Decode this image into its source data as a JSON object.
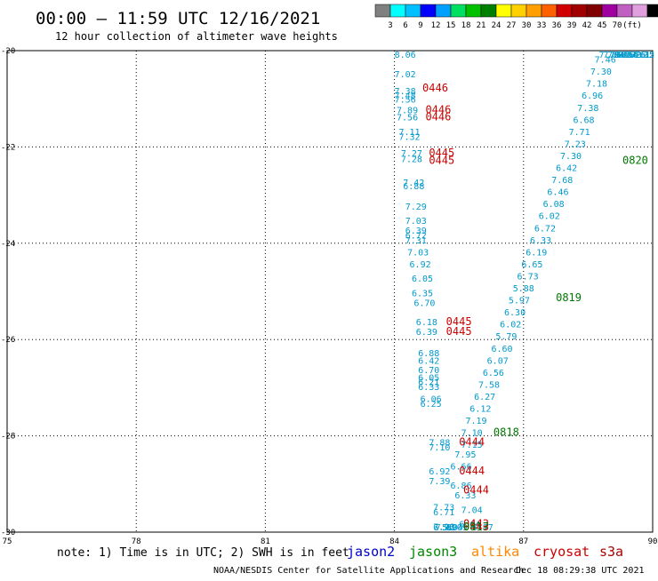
{
  "header": {
    "title": "00:00 – 11:59 UTC 12/16/2021",
    "subtitle": "12 hour collection of altimeter wave heights"
  },
  "color_scale": {
    "colors": [
      "#808080",
      "#00ffff",
      "#00c0ff",
      "#0000ff",
      "#00a0ff",
      "#00e060",
      "#00c000",
      "#008000",
      "#ffff00",
      "#ffd000",
      "#ffa000",
      "#ff6000",
      "#d00000",
      "#a00000",
      "#800000",
      "#a000a0",
      "#c060c0",
      "#e0a0e0",
      "#000000"
    ],
    "labels": [
      "3",
      "6",
      "9",
      "12",
      "15",
      "18",
      "21",
      "24",
      "27",
      "30",
      "33",
      "36",
      "39",
      "42",
      "45",
      "70",
      "(ft)"
    ]
  },
  "footer": {
    "note": "note: 1) Time is in UTC; 2) SWH is in feet",
    "credit": "NOAA/NESDIS Center for Satellite Applications and Research",
    "timestamp": "Dec 18 08:29:38 UTC 2021"
  },
  "legend": [
    {
      "name": "jason2",
      "color": "#0000cc"
    },
    {
      "name": "jason3",
      "color": "#008800"
    },
    {
      "name": "altika",
      "color": "#ff8800"
    },
    {
      "name": "cryosat",
      "color": "#cc0000"
    },
    {
      "name": "s3a",
      "color": "#aa0000"
    }
  ],
  "chart_data": {
    "type": "scatter",
    "xlim": [
      75,
      90
    ],
    "ylim": [
      -30,
      -20
    ],
    "x_ticks": [
      "75",
      "78",
      "81",
      "84",
      "87",
      "90"
    ],
    "y_ticks": [
      "-20",
      "-22",
      "-24",
      "-26",
      "-28",
      "-30"
    ],
    "grid": true,
    "track_color": "#0099cc",
    "time_color": "#cc0000",
    "time2_color": "#007700",
    "wave_labels": [
      {
        "x": 84.0,
        "y": -20.05,
        "v": "8.06"
      },
      {
        "x": 84.0,
        "y": -20.55,
        "v": "7.02"
      },
      {
        "x": 84.0,
        "y": -20.9,
        "v": "7.38"
      },
      {
        "x": 84.0,
        "y": -21.0,
        "v": "7.48"
      },
      {
        "x": 84.0,
        "y": -21.08,
        "v": "7.56"
      },
      {
        "x": 84.05,
        "y": -21.3,
        "v": "7.89"
      },
      {
        "x": 84.05,
        "y": -21.45,
        "v": "7.56"
      },
      {
        "x": 84.1,
        "y": -21.75,
        "v": "7.11"
      },
      {
        "x": 84.1,
        "y": -21.85,
        "v": "7.32"
      },
      {
        "x": 84.15,
        "y": -22.2,
        "v": "7.27"
      },
      {
        "x": 84.15,
        "y": -22.32,
        "v": "7.28"
      },
      {
        "x": 84.2,
        "y": -22.8,
        "v": "7.42"
      },
      {
        "x": 84.2,
        "y": -22.88,
        "v": "6.88"
      },
      {
        "x": 84.25,
        "y": -23.3,
        "v": "7.29"
      },
      {
        "x": 84.25,
        "y": -23.6,
        "v": "7.03"
      },
      {
        "x": 84.25,
        "y": -23.8,
        "v": "6.39"
      },
      {
        "x": 84.25,
        "y": -23.9,
        "v": "6.72"
      },
      {
        "x": 84.25,
        "y": -24.0,
        "v": "7.31"
      },
      {
        "x": 84.3,
        "y": -24.25,
        "v": "7.03"
      },
      {
        "x": 84.35,
        "y": -24.5,
        "v": "6.92"
      },
      {
        "x": 84.4,
        "y": -24.8,
        "v": "6.05"
      },
      {
        "x": 84.4,
        "y": -25.1,
        "v": "6.35"
      },
      {
        "x": 84.45,
        "y": -25.3,
        "v": "6.70"
      },
      {
        "x": 84.5,
        "y": -25.7,
        "v": "6.18"
      },
      {
        "x": 84.5,
        "y": -25.9,
        "v": "6.39"
      },
      {
        "x": 84.55,
        "y": -26.35,
        "v": "6.88"
      },
      {
        "x": 84.55,
        "y": -26.5,
        "v": "6.42"
      },
      {
        "x": 84.55,
        "y": -26.7,
        "v": "6.70"
      },
      {
        "x": 84.55,
        "y": -26.85,
        "v": "6.05"
      },
      {
        "x": 84.55,
        "y": -26.95,
        "v": "6.21"
      },
      {
        "x": 84.55,
        "y": -27.05,
        "v": "6.33"
      },
      {
        "x": 84.6,
        "y": -27.3,
        "v": "6.06"
      },
      {
        "x": 84.6,
        "y": -27.4,
        "v": "6.25"
      },
      {
        "x": 84.8,
        "y": -28.2,
        "v": "7.88"
      },
      {
        "x": 84.8,
        "y": -28.3,
        "v": "7.10"
      },
      {
        "x": 84.8,
        "y": -28.8,
        "v": "6.92"
      },
      {
        "x": 84.8,
        "y": -29.0,
        "v": "7.39"
      },
      {
        "x": 84.9,
        "y": -29.55,
        "v": "7.73"
      },
      {
        "x": 84.9,
        "y": -29.65,
        "v": "6.71"
      },
      {
        "x": 85.55,
        "y": -29.6,
        "v": "7.04"
      },
      {
        "x": 85.5,
        "y": -29.9,
        "v": "6.64"
      },
      {
        "x": 84.9,
        "y": -29.95,
        "v": "7.96"
      },
      {
        "x": 84.95,
        "y": -30.05,
        "v": "7.19"
      },
      {
        "x": 85.1,
        "y": -30.15,
        "v": "5.04"
      },
      {
        "x": 84.9,
        "y": -30.3,
        "v": "6.72"
      },
      {
        "x": 85.2,
        "y": -30.35,
        "v": "6.09"
      },
      {
        "x": 85.8,
        "y": -30.3,
        "v": "6.87"
      },
      {
        "x": 85.55,
        "y": -28.25,
        "v": "7.15"
      },
      {
        "x": 85.4,
        "y": -28.45,
        "v": "7.95"
      },
      {
        "x": 85.3,
        "y": -28.7,
        "v": "6.66"
      },
      {
        "x": 85.3,
        "y": -29.1,
        "v": "6.86"
      },
      {
        "x": 85.4,
        "y": -29.3,
        "v": "6.33"
      },
      {
        "x": 85.55,
        "y": -28.0,
        "v": "7.10"
      },
      {
        "x": 85.65,
        "y": -27.75,
        "v": "7.19"
      },
      {
        "x": 85.75,
        "y": -27.5,
        "v": "6.12"
      },
      {
        "x": 85.85,
        "y": -27.25,
        "v": "6.27"
      },
      {
        "x": 85.95,
        "y": -27.0,
        "v": "7.58"
      },
      {
        "x": 86.05,
        "y": -26.75,
        "v": "6.56"
      },
      {
        "x": 86.15,
        "y": -26.5,
        "v": "6.07"
      },
      {
        "x": 86.25,
        "y": -26.25,
        "v": "6.60"
      },
      {
        "x": 86.35,
        "y": -26.0,
        "v": "5.79"
      },
      {
        "x": 86.45,
        "y": -25.75,
        "v": "6.02"
      },
      {
        "x": 86.55,
        "y": -25.5,
        "v": "6.30"
      },
      {
        "x": 86.65,
        "y": -25.25,
        "v": "5.97"
      },
      {
        "x": 86.75,
        "y": -25.0,
        "v": "5.88"
      },
      {
        "x": 86.85,
        "y": -24.75,
        "v": "6.73"
      },
      {
        "x": 86.95,
        "y": -24.5,
        "v": "6.65"
      },
      {
        "x": 87.05,
        "y": -24.25,
        "v": "6.19"
      },
      {
        "x": 87.15,
        "y": -24.0,
        "v": "6.33"
      },
      {
        "x": 87.25,
        "y": -23.75,
        "v": "6.72"
      },
      {
        "x": 87.35,
        "y": -23.5,
        "v": "6.02"
      },
      {
        "x": 87.45,
        "y": -23.25,
        "v": "6.08"
      },
      {
        "x": 87.55,
        "y": -23.0,
        "v": "6.46"
      },
      {
        "x": 87.65,
        "y": -22.75,
        "v": "7.68"
      },
      {
        "x": 87.75,
        "y": -22.5,
        "v": "6.42"
      },
      {
        "x": 87.85,
        "y": -22.25,
        "v": "7.30"
      },
      {
        "x": 87.95,
        "y": -22.0,
        "v": "7.23"
      },
      {
        "x": 88.05,
        "y": -21.75,
        "v": "7.71"
      },
      {
        "x": 88.15,
        "y": -21.5,
        "v": "6.68"
      },
      {
        "x": 88.25,
        "y": -21.25,
        "v": "7.38"
      },
      {
        "x": 88.35,
        "y": -21.0,
        "v": "6.96"
      },
      {
        "x": 88.45,
        "y": -20.75,
        "v": "7.18"
      },
      {
        "x": 88.55,
        "y": -20.5,
        "v": "7.30"
      },
      {
        "x": 88.65,
        "y": -20.25,
        "v": "7.46"
      },
      {
        "x": 88.75,
        "y": -20.0,
        "v": "7.79"
      },
      {
        "x": 88.85,
        "y": -19.75,
        "v": "7.04"
      },
      {
        "x": 88.95,
        "y": -19.5,
        "v": "7.05"
      },
      {
        "x": 89.05,
        "y": -19.25,
        "v": "6.45"
      },
      {
        "x": 89.15,
        "y": -19.0,
        "v": "6.84"
      },
      {
        "x": 89.25,
        "y": -18.75,
        "v": "6.79"
      },
      {
        "x": 89.35,
        "y": -18.5,
        "v": "6.26"
      },
      {
        "x": 89.45,
        "y": -18.25,
        "v": "6.61"
      },
      {
        "x": 89.55,
        "y": -18.0,
        "v": "6.12"
      },
      {
        "x": 89.65,
        "y": -17.75,
        "v": "6.35"
      }
    ],
    "time_labels": [
      {
        "x": 84.65,
        "y": -20.85,
        "v": "0446",
        "c": "time"
      },
      {
        "x": 84.72,
        "y": -21.3,
        "v": "0446",
        "c": "time"
      },
      {
        "x": 84.72,
        "y": -21.45,
        "v": "0446",
        "c": "time"
      },
      {
        "x": 84.8,
        "y": -22.2,
        "v": "0445",
        "c": "time"
      },
      {
        "x": 84.8,
        "y": -22.35,
        "v": "0445",
        "c": "time"
      },
      {
        "x": 85.2,
        "y": -25.7,
        "v": "0445",
        "c": "time"
      },
      {
        "x": 85.2,
        "y": -25.9,
        "v": "0445",
        "c": "time"
      },
      {
        "x": 85.5,
        "y": -28.2,
        "v": "0444",
        "c": "time"
      },
      {
        "x": 85.5,
        "y": -28.8,
        "v": "0444",
        "c": "time"
      },
      {
        "x": 85.6,
        "y": -29.2,
        "v": "0444",
        "c": "time"
      },
      {
        "x": 85.6,
        "y": -29.9,
        "v": "0443",
        "c": "time"
      },
      {
        "x": 85.6,
        "y": -30.05,
        "v": "0443",
        "c": "time"
      },
      {
        "x": 86.3,
        "y": -28.0,
        "v": "0818",
        "c": "time2"
      },
      {
        "x": 87.75,
        "y": -25.2,
        "v": "0819",
        "c": "time2"
      },
      {
        "x": 89.3,
        "y": -22.35,
        "v": "0820",
        "c": "time2"
      },
      {
        "x": 85.6,
        "y": -30.25,
        "v": "0817",
        "c": "time2"
      }
    ]
  }
}
